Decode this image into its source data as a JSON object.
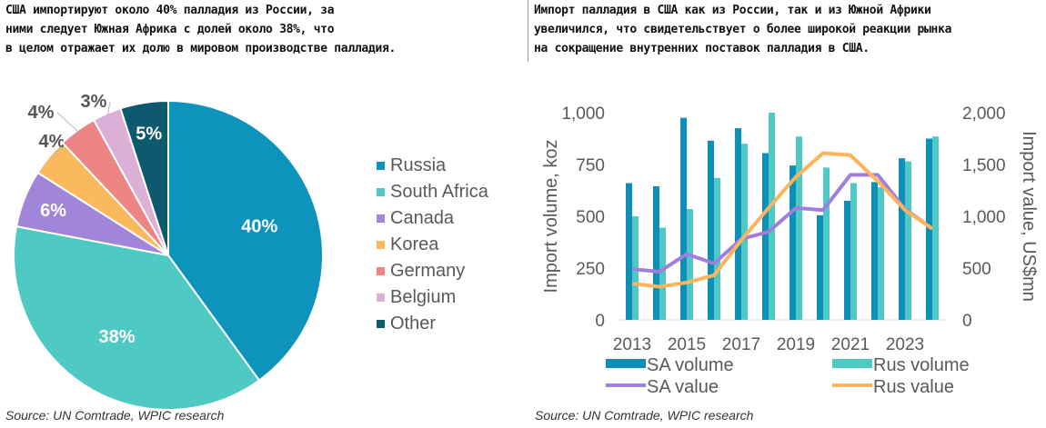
{
  "captions": {
    "left": "США импортируют около 40% палладия из России, за\nними следует Южная Африка с долей около 38%, что\nв целом отражает их долю в мировом производстве палладия.",
    "right": "Импорт палладия в США как из России, так и из Южной Африки\nувеличился, что свидетельствует о более широкой реакции рынка\nна сокращение внутренних поставок палладия в США."
  },
  "sources": {
    "left": "Source: UN Comtrade, WPIC research",
    "right": "Source: UN Comtrade, WPIC research"
  },
  "chart_data": [
    {
      "type": "pie",
      "title": "",
      "slices": [
        {
          "label": "Russia",
          "value": 40,
          "display": "40%",
          "color": "#0e93bd"
        },
        {
          "label": "South Africa",
          "value": 38,
          "display": "38%",
          "color": "#4ec9c4"
        },
        {
          "label": "Canada",
          "value": 6,
          "display": "6%",
          "color": "#a185d8"
        },
        {
          "label": "Korea",
          "value": 4,
          "display": "4%",
          "color": "#fbb95d"
        },
        {
          "label": "Germany",
          "value": 4,
          "display": "4%",
          "color": "#ee8585"
        },
        {
          "label": "Belgium",
          "value": 3,
          "display": "3%",
          "color": "#dcb0d6"
        },
        {
          "label": "Other",
          "value": 5,
          "display": "5%",
          "color": "#0d5a6e"
        }
      ],
      "legend": "right"
    },
    {
      "type": "bar",
      "title": "",
      "x": [
        2013,
        2014,
        2015,
        2016,
        2017,
        2018,
        2019,
        2020,
        2021,
        2022,
        2023,
        2024
      ],
      "xticks": [
        "2013",
        "2015",
        "2017",
        "2019",
        "2021",
        "2023"
      ],
      "ylabel": "Import volume, koz",
      "y2label": "Import value, US$mn",
      "ylim": [
        0,
        1000
      ],
      "y2lim": [
        0,
        2000
      ],
      "yticks": [
        "0",
        "250",
        "500",
        "750",
        "1,000"
      ],
      "y2ticks": [
        "0",
        "500",
        "1,000",
        "1,500",
        "2,000"
      ],
      "series": [
        {
          "name": "SA volume",
          "type": "bar",
          "axis": "left",
          "color": "#0e8fb8",
          "values": [
            660,
            645,
            975,
            865,
            925,
            805,
            745,
            505,
            575,
            665,
            780,
            875
          ]
        },
        {
          "name": "Rus volume",
          "type": "bar",
          "axis": "left",
          "color": "#4ec9c4",
          "values": [
            500,
            445,
            535,
            685,
            850,
            1000,
            885,
            735,
            660,
            640,
            765,
            885
          ]
        },
        {
          "name": "SA value",
          "type": "line",
          "axis": "right",
          "color": "#a07fdc",
          "values": [
            490,
            465,
            635,
            545,
            780,
            850,
            1080,
            1060,
            1400,
            1400,
            1070,
            880
          ]
        },
        {
          "name": "Rus value",
          "type": "line",
          "axis": "right",
          "color": "#fdb45c",
          "values": [
            350,
            320,
            360,
            430,
            770,
            1080,
            1380,
            1610,
            1590,
            1340,
            1060,
            880
          ]
        }
      ],
      "legend": "bottom"
    }
  ]
}
